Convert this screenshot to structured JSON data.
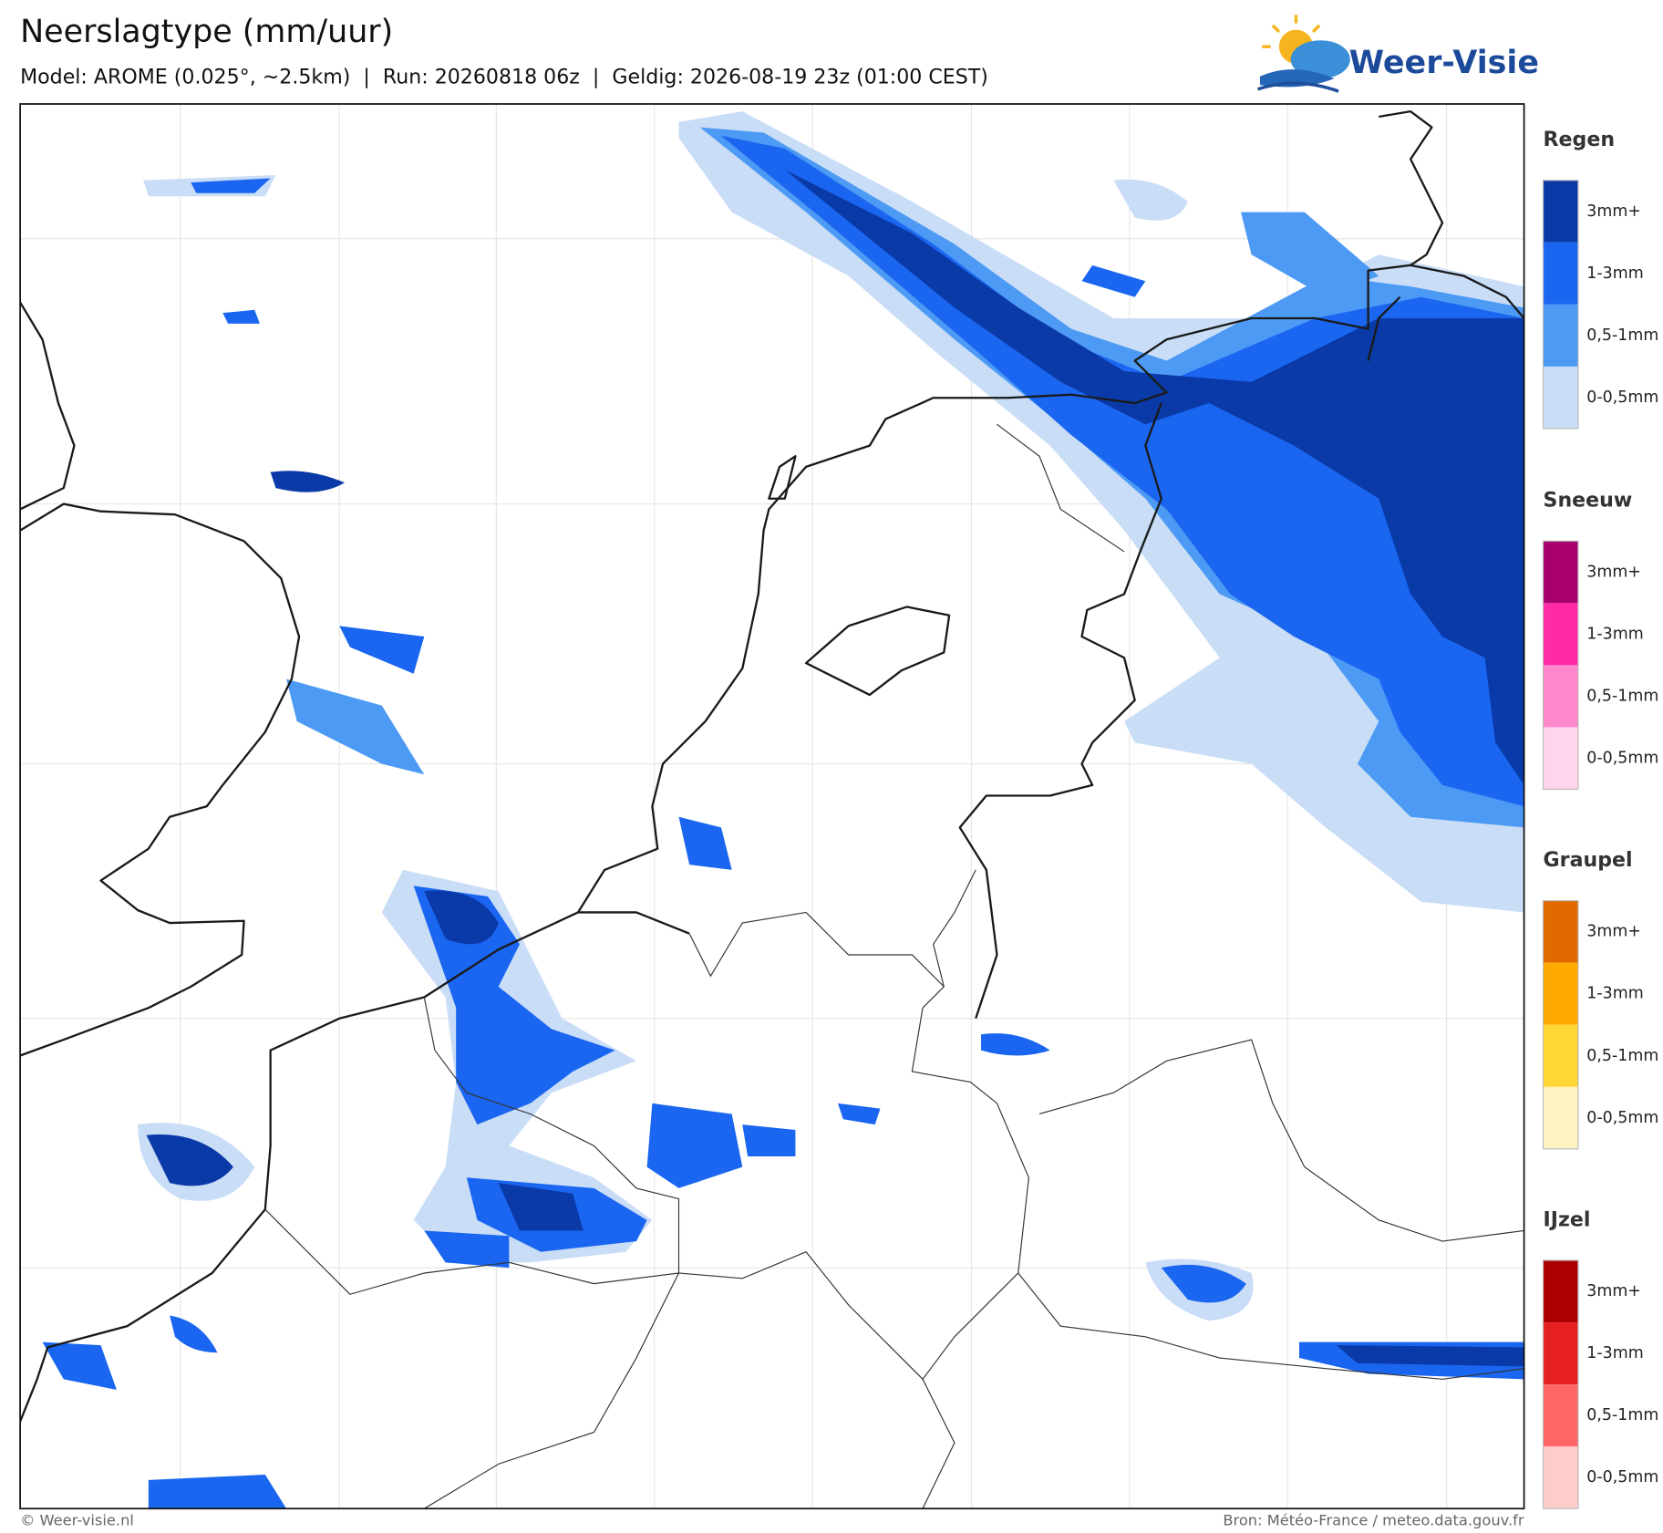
{
  "header": {
    "title": "Neerslagtype (mm/uur)",
    "subtitle": "Model: AROME (0.025°, ~2.5km)  |  Run: 20260818 06z  |  Geldig: 2026-08-19 23z (01:00 CEST)"
  },
  "logo": {
    "text": "Weer-Visie"
  },
  "legend": [
    {
      "title": "Regen",
      "items": [
        {
          "label": "3mm+",
          "color": "#0a3aa8"
        },
        {
          "label": "1-3mm",
          "color": "#1a66f0"
        },
        {
          "label": "0,5-1mm",
          "color": "#4d9af5"
        },
        {
          "label": "0-0,5mm",
          "color": "#c9ddf7"
        }
      ]
    },
    {
      "title": "Sneeuw",
      "items": [
        {
          "label": "3mm+",
          "color": "#a8006e"
        },
        {
          "label": "1-3mm",
          "color": "#ff2aa8"
        },
        {
          "label": "0,5-1mm",
          "color": "#ff88cc"
        },
        {
          "label": "0-0,5mm",
          "color": "#ffd5ec"
        }
      ]
    },
    {
      "title": "Graupel",
      "items": [
        {
          "label": "3mm+",
          "color": "#e06a00"
        },
        {
          "label": "1-3mm",
          "color": "#ffaa00"
        },
        {
          "label": "0,5-1mm",
          "color": "#ffd633"
        },
        {
          "label": "0-0,5mm",
          "color": "#fff2c2"
        }
      ]
    },
    {
      "title": "IJzel",
      "items": [
        {
          "label": "3mm+",
          "color": "#aa0000"
        },
        {
          "label": "1-3mm",
          "color": "#e62020"
        },
        {
          "label": "0,5-1mm",
          "color": "#ff6666"
        },
        {
          "label": "0-0,5mm",
          "color": "#ffcccc"
        }
      ]
    }
  ],
  "footer": {
    "left": "© Weer-visie.nl",
    "right": "Bron: Météo-France / meteo.data.gouv.fr"
  }
}
